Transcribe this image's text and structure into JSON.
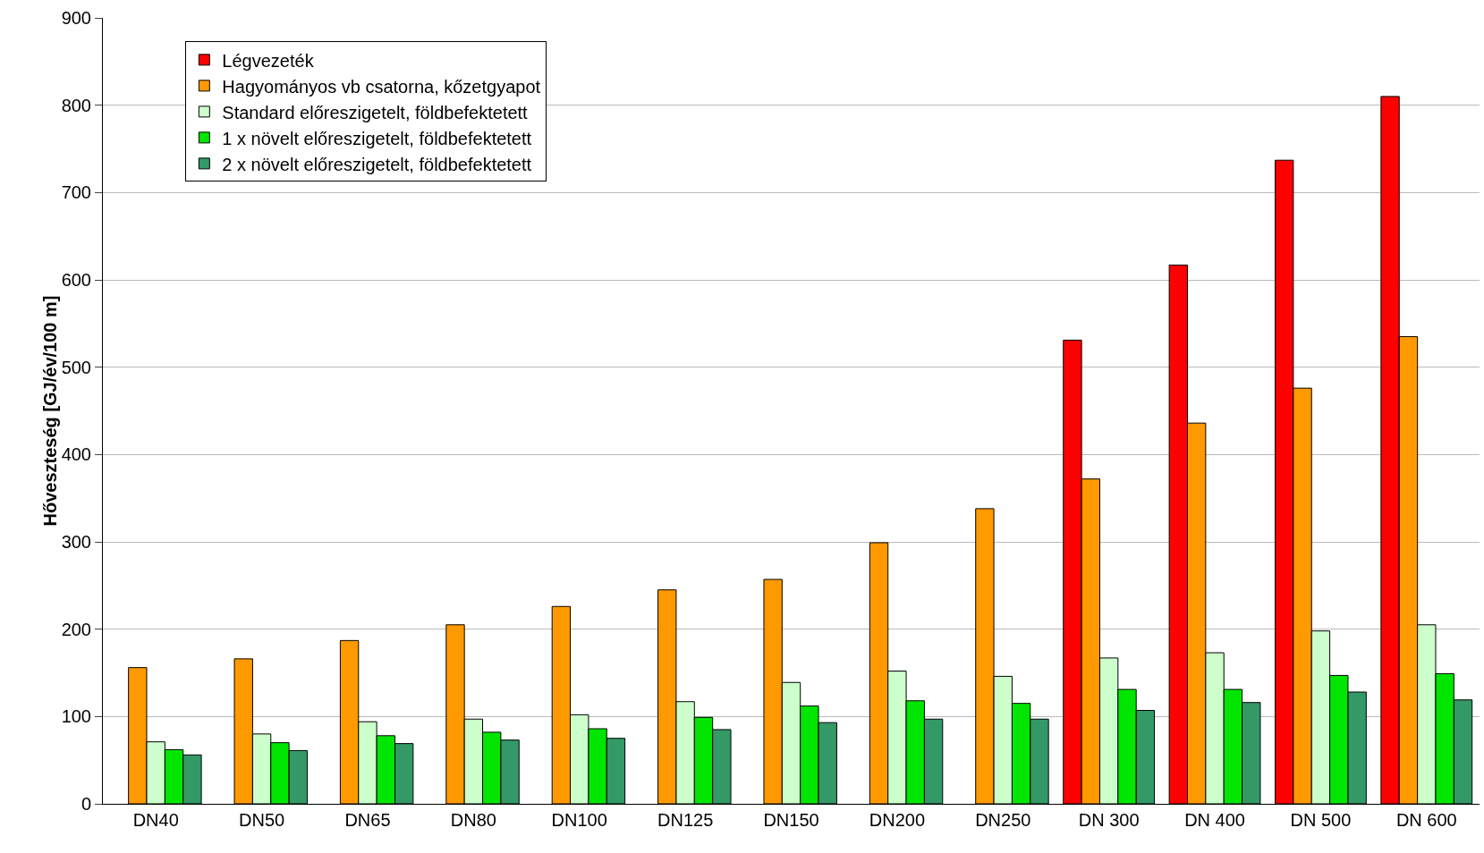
{
  "chart_data": {
    "type": "bar",
    "ylabel": "Hőveszteség [GJ/év/100 m]",
    "categories": [
      "DN40",
      "DN50",
      "DN65",
      "DN80",
      "DN100",
      "DN125",
      "DN150",
      "DN200",
      "DN250",
      "DN 300",
      "DN 400",
      "DN 500",
      "DN 600"
    ],
    "series": [
      {
        "name": "Légvezeték",
        "color": "#ff0000",
        "values": [
          null,
          null,
          null,
          null,
          null,
          null,
          null,
          null,
          null,
          531,
          617,
          737,
          810
        ]
      },
      {
        "name": "Hagyományos vb csatorna, kőzetgyapot",
        "color": "#ff9900",
        "values": [
          156,
          166,
          187,
          205,
          226,
          245,
          257,
          299,
          338,
          372,
          436,
          476,
          535
        ]
      },
      {
        "name": "Standard előreszigetelt, földbefektetett",
        "color": "#ccffcc",
        "values": [
          71,
          80,
          94,
          97,
          102,
          117,
          139,
          152,
          146,
          167,
          173,
          198,
          205
        ]
      },
      {
        "name": "1 x növelt előreszigetelt, földbefektetett",
        "color": "#00e600",
        "values": [
          62,
          70,
          78,
          82,
          86,
          99,
          112,
          118,
          115,
          131,
          131,
          147,
          149
        ]
      },
      {
        "name": "2 x növelt előreszigetelt, földbefektetett",
        "color": "#339966",
        "values": [
          56,
          61,
          69,
          73,
          75,
          85,
          93,
          97,
          97,
          107,
          116,
          128,
          119
        ]
      }
    ],
    "ylim": [
      0,
      900
    ],
    "yticks": [
      0,
      100,
      200,
      300,
      400,
      500,
      600,
      700,
      800,
      900
    ],
    "grid": "y",
    "legend": "top left"
  }
}
